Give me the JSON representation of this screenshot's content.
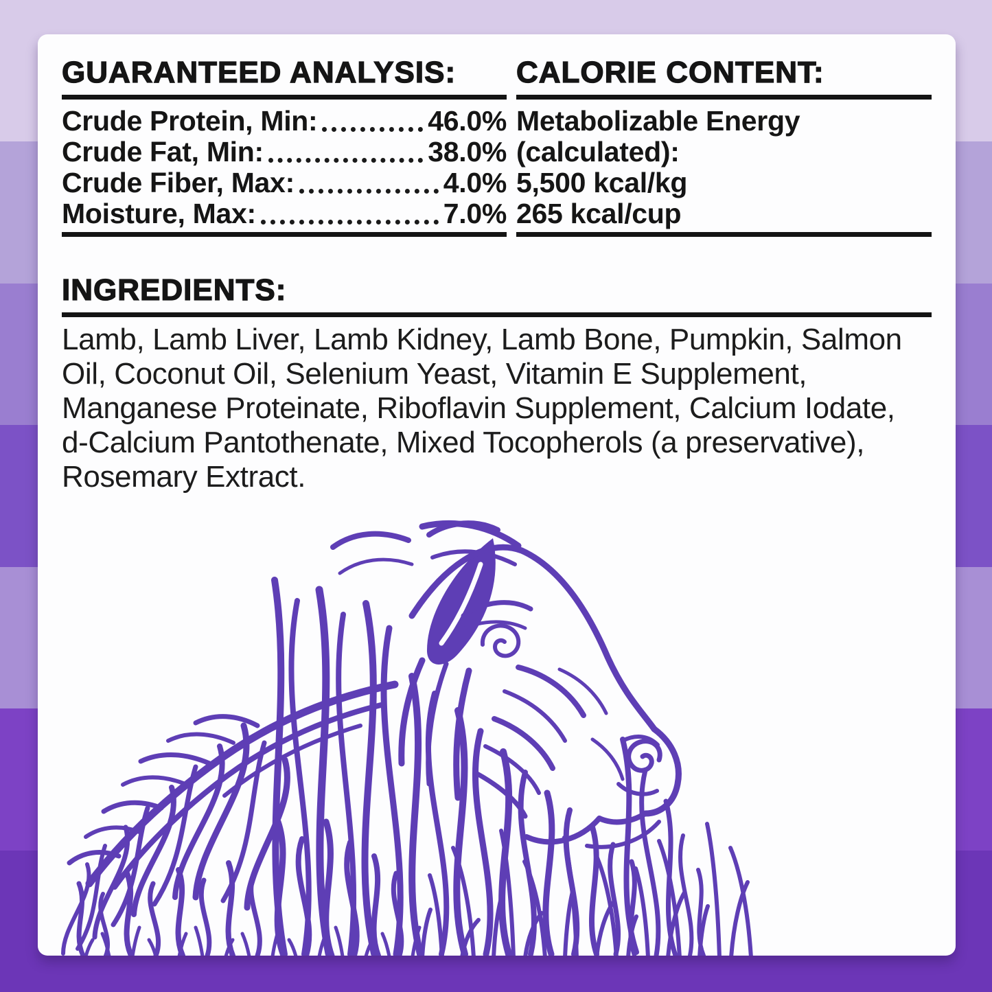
{
  "background": {
    "bands": [
      "#d8cbe9",
      "#b4a3d9",
      "#9a7ed0",
      "#7c52c6",
      "#a88fd5",
      "#7d42c5",
      "#6c36b7"
    ]
  },
  "guaranteed_analysis": {
    "title": "GUARANTEED ANALYSIS:",
    "rows": [
      {
        "label": "Crude Protein, Min:",
        "value": "46.0%"
      },
      {
        "label": "Crude Fat, Min:",
        "value": "38.0%"
      },
      {
        "label": "Crude Fiber, Max:",
        "value": "4.0%"
      },
      {
        "label": "Moisture, Max:",
        "value": "7.0%"
      }
    ]
  },
  "calorie_content": {
    "title": "CALORIE CONTENT:",
    "lines": [
      "Metabolizable Energy",
      "(calculated):",
      "5,500 kcal/kg",
      "265 kcal/cup"
    ]
  },
  "ingredients": {
    "title": "INGREDIENTS:",
    "lines": [
      "Lamb, Lamb Liver, Lamb Kidney, Lamb Bone, Pumpkin, Salmon",
      "Oil, Coconut Oil, Selenium Yeast, Vitamin E Supplement,",
      "Manganese Proteinate, Riboflavin Supplement, Calcium Iodate,",
      "d-Calcium Pantothenate, Mixed Tocopherols (a preservative),",
      "Rosemary Extract."
    ]
  },
  "illustration": {
    "name": "lamb-sheep-line-art",
    "color": "#5e3eb5"
  }
}
